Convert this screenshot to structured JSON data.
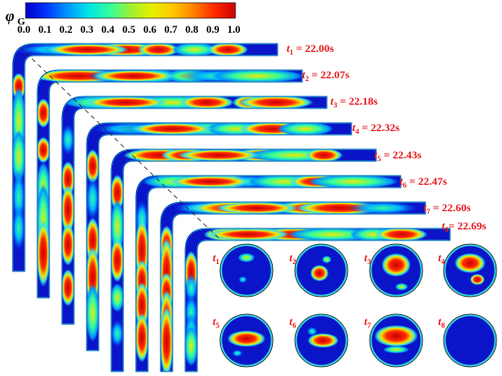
{
  "colorbar": {
    "symbol": "φ",
    "subscript": "G",
    "ticks": [
      "0.0",
      "0.1",
      "0.2",
      "0.3",
      "0.4",
      "0.5",
      "0.6",
      "0.7",
      "0.8",
      "0.9",
      "1.0"
    ],
    "colors": [
      "#0000c8",
      "#0036ff",
      "#0096ff",
      "#00e6e6",
      "#32ff9e",
      "#9ef032",
      "#e6f000",
      "#ffc800",
      "#ff8200",
      "#ff2800",
      "#c80000"
    ]
  },
  "snapshots": [
    {
      "t": "t",
      "sub": "1",
      "value": " = 22.00s"
    },
    {
      "t": "t",
      "sub": "2",
      "value": " = 22.07s"
    },
    {
      "t": "t",
      "sub": "3",
      "value": " = 22.18s"
    },
    {
      "t": "t",
      "sub": "4",
      "value": " = 22.32s"
    },
    {
      "t": "t",
      "sub": "5",
      "value": " = 22.43s"
    },
    {
      "t": "t",
      "sub": "6",
      "value": " = 22.47s"
    },
    {
      "t": "t",
      "sub": "7",
      "value": " = 22.60s"
    },
    {
      "t": "t",
      "sub": "8",
      "value": "= 22.69s"
    }
  ],
  "cross_sections": [
    {
      "t": "t",
      "sub": "1"
    },
    {
      "t": "t",
      "sub": "2"
    },
    {
      "t": "t",
      "sub": "3"
    },
    {
      "t": "t",
      "sub": "4"
    },
    {
      "t": "t",
      "sub": "5"
    },
    {
      "t": "t",
      "sub": "6"
    },
    {
      "t": "t",
      "sub": "7"
    },
    {
      "t": "t",
      "sub": "8"
    }
  ],
  "pipe_colors": {
    "base": "#0a14c8",
    "edge": "#0000a0",
    "ring": "#35e3e3",
    "mid": "#f2e800",
    "hot": "#e8171a"
  }
}
